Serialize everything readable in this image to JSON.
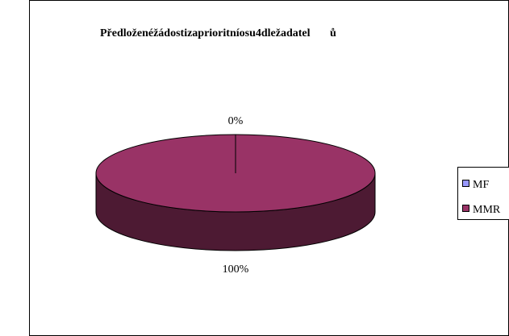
{
  "chart_data": {
    "type": "pie",
    "title": "Předloženéžádostizaprioritníosu4dležadatel       ů",
    "categories": [
      "MF",
      "MMR"
    ],
    "legend_labels": [
      "MF",
      "MMR"
    ],
    "values": [
      0,
      100
    ],
    "data_labels": [
      "0%",
      "100%"
    ],
    "colors": [
      "#9999ff",
      "#993366"
    ],
    "side_color": "#4d1a33",
    "legend_position": "right",
    "three_d": true
  }
}
